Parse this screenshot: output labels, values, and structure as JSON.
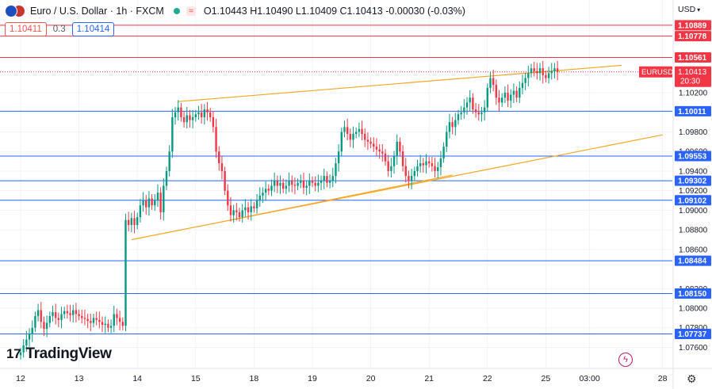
{
  "header": {
    "symbol": "Euro / U.S. Dollar · 1h · FXCM",
    "ohlc": "O1.10443 H1.10490 L1.10409 C1.10413 -0.00030 (-0.03%)"
  },
  "trade": {
    "sell": "1.10411",
    "spread": "0.3",
    "buy": "1.10414"
  },
  "currency_label": "USD",
  "brand": "TradingView",
  "colors": {
    "up": "#089981",
    "down": "#f23645",
    "support": "#2962ff",
    "resistance": "#f23645",
    "trend": "#f5a623"
  },
  "chart_data": {
    "type": "candlestick",
    "symbol": "EURUSD",
    "ylim": [
      1.0745,
      1.1105
    ],
    "y_ticks": [
      1.102,
      1.098,
      1.096,
      1.094,
      1.092,
      1.09,
      1.088,
      1.086,
      1.082,
      1.08,
      1.078,
      1.076
    ],
    "y_tick_labels": [
      "1.10200",
      "1.09800",
      "1.09600",
      "1.09400",
      "1.09200",
      "1.09000",
      "1.08800",
      "1.08600",
      "1.08200",
      "1.08000",
      "1.07800",
      "1.07600"
    ],
    "x_ticks": [
      {
        "label": "12",
        "i": 0
      },
      {
        "label": "13",
        "i": 20
      },
      {
        "label": "14",
        "i": 40
      },
      {
        "label": "15",
        "i": 60
      },
      {
        "label": "18",
        "i": 80
      },
      {
        "label": "19",
        "i": 100
      },
      {
        "label": "20",
        "i": 120
      },
      {
        "label": "21",
        "i": 140
      },
      {
        "label": "22",
        "i": 160
      },
      {
        "label": "25",
        "i": 180
      },
      {
        "label": "03:00",
        "i": 195
      },
      {
        "label": "28",
        "i": 220
      }
    ],
    "last_price": {
      "label": "EURUSD",
      "value": "1.10413",
      "countdown": "20:30",
      "y": 1.10413
    },
    "horizontal_levels": [
      {
        "value": 1.10889,
        "label": "1.10889",
        "type": "resistance"
      },
      {
        "value": 1.10778,
        "label": "1.10778",
        "type": "resistance"
      },
      {
        "value": 1.10561,
        "label": "1.10561",
        "type": "resistance"
      },
      {
        "value": 1.10011,
        "label": "1.10011",
        "type": "support"
      },
      {
        "value": 1.09553,
        "label": "1.09553",
        "type": "support"
      },
      {
        "value": 1.09302,
        "label": "1.09302",
        "type": "support"
      },
      {
        "value": 1.09102,
        "label": "1.09102",
        "type": "support"
      },
      {
        "value": 1.08484,
        "label": "1.08484",
        "type": "support"
      },
      {
        "value": 1.0815,
        "label": "1.08150",
        "type": "support"
      },
      {
        "value": 1.07737,
        "label": "1.07737",
        "type": "support"
      }
    ],
    "trendlines": [
      {
        "from": [
          54,
          1.1011
        ],
        "to": [
          206,
          1.1048
        ]
      },
      {
        "from": [
          38,
          1.087
        ],
        "to": [
          220,
          1.0977
        ]
      },
      {
        "from": [
          72,
          1.089
        ],
        "to": [
          148,
          1.0936
        ]
      }
    ],
    "close": [
      1.0755,
      1.0762,
      1.0768,
      1.0774,
      1.078,
      1.0792,
      1.0798,
      1.0786,
      1.0779,
      1.0785,
      1.0792,
      1.0796,
      1.079,
      1.0788,
      1.0794,
      1.0797,
      1.0795,
      1.0793,
      1.0798,
      1.0794,
      1.0792,
      1.079,
      1.0789,
      1.0787,
      1.0785,
      1.079,
      1.0788,
      1.0786,
      1.0783,
      1.0784,
      1.078,
      1.0782,
      1.0794,
      1.079,
      1.0786,
      1.0782,
      1.089,
      1.0885,
      1.0892,
      1.0885,
      1.0893,
      1.0905,
      1.091,
      1.0903,
      1.0912,
      1.0905,
      1.091,
      1.0918,
      1.0898,
      1.0925,
      1.094,
      1.096,
      1.0995,
      1.1,
      1.1005,
      1.0995,
      1.099,
      1.0997,
      1.0992,
      1.0995,
      1.0998,
      1.1,
      1.0995,
      1.1003,
      1.1,
      1.0995,
      1.0985,
      1.096,
      1.0948,
      1.094,
      1.092,
      1.0905,
      1.0895,
      1.09,
      1.0898,
      1.0893,
      1.09,
      1.0903,
      1.0898,
      1.0904,
      1.0902,
      1.091,
      1.0915,
      1.0918,
      1.0922,
      1.092,
      1.0925,
      1.093,
      1.0925,
      1.0928,
      1.0922,
      1.0925,
      1.093,
      1.0926,
      1.0925,
      1.0928,
      1.093,
      1.0923,
      1.0925,
      1.093,
      1.0928,
      1.0925,
      1.0928,
      1.093,
      1.0935,
      1.0928,
      1.093,
      1.0935,
      1.0948,
      1.096,
      1.098,
      1.0985,
      1.0978,
      1.0972,
      1.0978,
      1.098,
      1.0983,
      1.0978,
      1.0972,
      1.097,
      1.0968,
      1.0965,
      1.0962,
      1.096,
      1.0958,
      1.095,
      1.094,
      1.0945,
      1.0955,
      1.097,
      1.096,
      1.0945,
      1.0935,
      1.093,
      1.0935,
      1.094,
      1.0945,
      1.0948,
      1.0946,
      1.095,
      1.0948,
      1.0945,
      1.094,
      1.0944,
      1.0953,
      1.0965,
      1.098,
      1.099,
      1.0985,
      1.0992,
      1.0998,
      1.1,
      1.1005,
      1.101,
      1.1015,
      1.1003,
      1.1,
      1.0998,
      1.1,
      1.1005,
      1.1025,
      1.1035,
      1.1028,
      1.1015,
      1.101,
      1.1015,
      1.102,
      1.1012,
      1.1018,
      1.1022,
      1.1015,
      1.1025,
      1.103,
      1.1035,
      1.104,
      1.1045,
      1.1042,
      1.104,
      1.1045,
      1.1038,
      1.1035,
      1.104,
      1.1042,
      1.1045,
      1.10413
    ]
  }
}
